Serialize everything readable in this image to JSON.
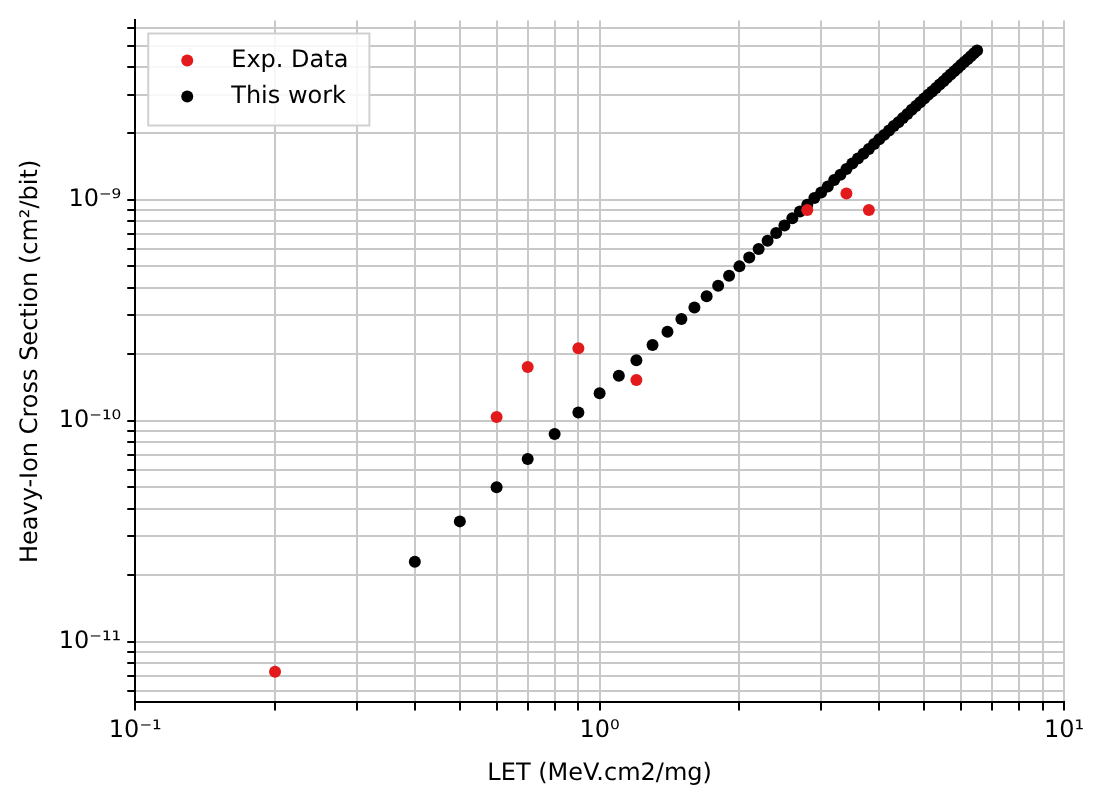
{
  "chart_data": {
    "type": "scatter",
    "xlabel": "LET (MeV.cm2/mg)",
    "ylabel": "Heavy-Ion Cross Section (cm²/bit)",
    "log": "xy",
    "grid": true,
    "legend": "top left",
    "marker": "circle",
    "xlim": [
      0.1,
      10
    ],
    "ylim": [
      5.3e-12,
      6.5e-09
    ],
    "xticks": [
      {
        "value": 0.1,
        "label": "10⁻¹"
      },
      {
        "value": 0.2,
        "label": null
      },
      {
        "value": 0.3,
        "label": null
      },
      {
        "value": 0.4,
        "label": null
      },
      {
        "value": 0.5,
        "label": null
      },
      {
        "value": 0.6,
        "label": null
      },
      {
        "value": 0.7,
        "label": null
      },
      {
        "value": 0.8,
        "label": null
      },
      {
        "value": 0.9,
        "label": null
      },
      {
        "value": 1,
        "label": "10⁰"
      },
      {
        "value": 2,
        "label": null
      },
      {
        "value": 3,
        "label": null
      },
      {
        "value": 4,
        "label": null
      },
      {
        "value": 5,
        "label": null
      },
      {
        "value": 6,
        "label": null
      },
      {
        "value": 7,
        "label": null
      },
      {
        "value": 8,
        "label": null
      },
      {
        "value": 9,
        "label": null
      },
      {
        "value": 10,
        "label": "10¹"
      }
    ],
    "yticks": [
      {
        "value": 6e-12,
        "label": null
      },
      {
        "value": 7e-12,
        "label": null
      },
      {
        "value": 8e-12,
        "label": null
      },
      {
        "value": 9e-12,
        "label": null
      },
      {
        "value": 1e-11,
        "label": "10⁻¹¹"
      },
      {
        "value": 2e-11,
        "label": null
      },
      {
        "value": 3e-11,
        "label": null
      },
      {
        "value": 4e-11,
        "label": null
      },
      {
        "value": 5e-11,
        "label": null
      },
      {
        "value": 6e-11,
        "label": null
      },
      {
        "value": 7e-11,
        "label": null
      },
      {
        "value": 8e-11,
        "label": null
      },
      {
        "value": 9e-11,
        "label": null
      },
      {
        "value": 1e-10,
        "label": "10⁻¹⁰"
      },
      {
        "value": 2e-10,
        "label": null
      },
      {
        "value": 3e-10,
        "label": null
      },
      {
        "value": 4e-10,
        "label": null
      },
      {
        "value": 5e-10,
        "label": null
      },
      {
        "value": 6e-10,
        "label": null
      },
      {
        "value": 7e-10,
        "label": null
      },
      {
        "value": 8e-10,
        "label": null
      },
      {
        "value": 9e-10,
        "label": null
      },
      {
        "value": 1e-09,
        "label": "10⁻⁹"
      },
      {
        "value": 2e-09,
        "label": null
      },
      {
        "value": 3e-09,
        "label": null
      },
      {
        "value": 4e-09,
        "label": null
      },
      {
        "value": 5e-09,
        "label": null
      },
      {
        "value": 6e-09,
        "label": null
      }
    ],
    "series": [
      {
        "name": "Exp. Data",
        "color": "#e31a1c",
        "x": [
          0.2,
          0.6,
          0.7,
          0.9,
          1.2,
          2.8,
          3.4,
          3.8
        ],
        "values": [
          7.3e-12,
          1.04e-10,
          1.75e-10,
          2.13e-10,
          1.53e-10,
          9e-10,
          1.07e-09,
          9e-10
        ]
      },
      {
        "name": "This work",
        "color": "#000000",
        "x": [
          0.4,
          0.5,
          0.6,
          0.7,
          0.8,
          0.9,
          1.0,
          1.1,
          1.2,
          1.3,
          1.4,
          1.5,
          1.6,
          1.7,
          1.8,
          1.9,
          2.0,
          2.1,
          2.2,
          2.3,
          2.4,
          2.5,
          2.6,
          2.7,
          2.8,
          2.9,
          3.0,
          3.1,
          3.2,
          3.3,
          3.4,
          3.5,
          3.6,
          3.7,
          3.8,
          3.9,
          4.0,
          4.1,
          4.2,
          4.3,
          4.4,
          4.5,
          4.6,
          4.7,
          4.8,
          4.9,
          5.0,
          5.1,
          5.2,
          5.3,
          5.4,
          5.5,
          5.6,
          5.7,
          5.8,
          5.9,
          6.0,
          6.1,
          6.2,
          6.3,
          6.4,
          6.5
        ],
        "values": [
          2.3e-11,
          3.5e-11,
          5e-11,
          6.7e-11,
          8.7e-11,
          1.09e-10,
          1.33e-10,
          1.6e-10,
          1.88e-10,
          2.2e-10,
          2.53e-10,
          2.89e-10,
          3.26e-10,
          3.66e-10,
          4.09e-10,
          4.53e-10,
          5e-10,
          5.49e-10,
          6e-10,
          6.53e-10,
          7.08e-10,
          7.65e-10,
          8.25e-10,
          8.87e-10,
          9.51e-10,
          1.02e-09,
          1.08e-09,
          1.15e-09,
          1.23e-09,
          1.3e-09,
          1.38e-09,
          1.46e-09,
          1.54e-09,
          1.62e-09,
          1.7e-09,
          1.79e-09,
          1.88e-09,
          1.97e-09,
          2.06e-09,
          2.16e-09,
          2.25e-09,
          2.35e-09,
          2.45e-09,
          2.56e-09,
          2.66e-09,
          2.77e-09,
          2.88e-09,
          2.99e-09,
          3.1e-09,
          3.21e-09,
          3.33e-09,
          3.45e-09,
          3.57e-09,
          3.7e-09,
          3.82e-09,
          3.95e-09,
          4.08e-09,
          4.21e-09,
          4.34e-09,
          4.47e-09,
          4.61e-09,
          4.75e-09
        ]
      }
    ]
  }
}
